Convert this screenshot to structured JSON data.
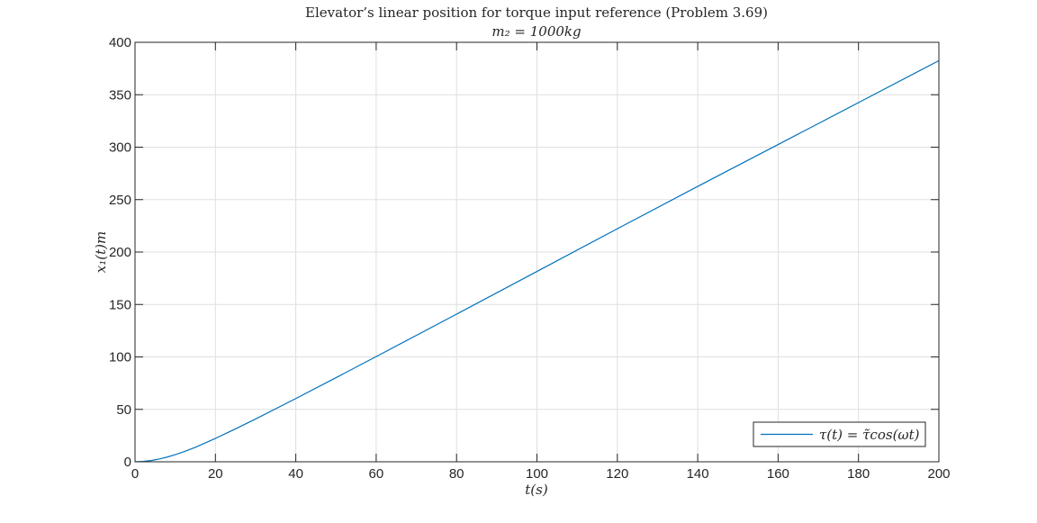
{
  "chart_data": {
    "type": "line",
    "title": "Elevator’s linear position for torque input reference (Problem 3.69)",
    "subtitle": "m₂ = 1000kg",
    "xlabel": "t(s)",
    "ylabel": "x₁(t)m",
    "xlim": [
      0,
      200
    ],
    "ylim": [
      0,
      400
    ],
    "xticks": [
      0,
      20,
      40,
      60,
      80,
      100,
      120,
      140,
      160,
      180,
      200
    ],
    "yticks": [
      0,
      50,
      100,
      150,
      200,
      250,
      300,
      350,
      400
    ],
    "grid": true,
    "legend_position": "bottom-right",
    "series": [
      {
        "name": "τ(t) = τ̃cos(ωt)",
        "color": "#0072bd",
        "x": [
          0,
          2,
          4,
          6,
          8,
          10,
          12,
          15,
          20,
          25,
          30,
          40,
          50,
          60,
          80,
          100,
          120,
          140,
          160,
          180,
          200
        ],
        "y": [
          0,
          0.3,
          1.2,
          2.6,
          4.5,
          6.8,
          9.4,
          13.8,
          22.3,
          31.4,
          40.8,
          60.3,
          80.2,
          100.3,
          140.8,
          181.5,
          222.2,
          262.6,
          302.5,
          342.5,
          382.5
        ]
      }
    ]
  }
}
